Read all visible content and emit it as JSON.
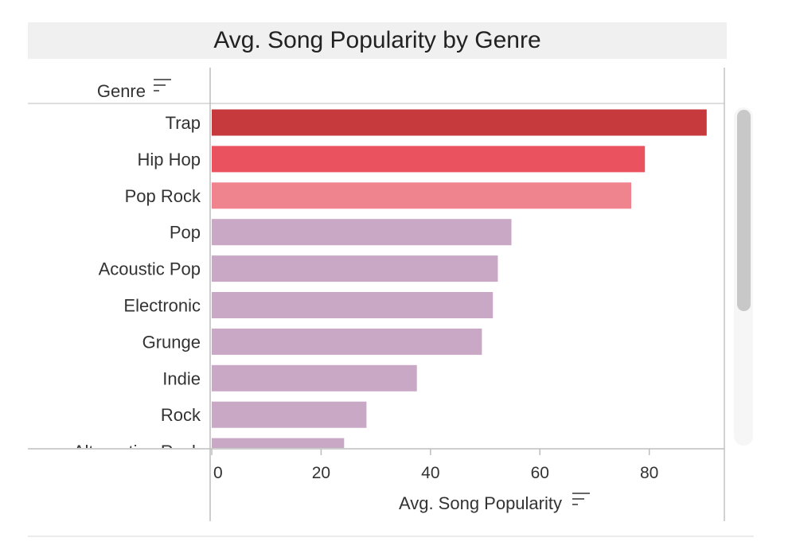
{
  "chart_data": {
    "type": "bar",
    "orientation": "horizontal",
    "title": "Avg. Song Popularity by Genre",
    "category_header": "Genre",
    "xlabel": "Avg. Song Popularity",
    "xlim": [
      0,
      93
    ],
    "x_ticks": [
      0,
      20,
      40,
      60,
      80
    ],
    "categories": [
      "Trap",
      "Hip Hop",
      "Pop Rock",
      "Pop",
      "Acoustic Pop",
      "Electronic",
      "Grunge",
      "Indie",
      "Rock",
      "Alternative Rock"
    ],
    "values": [
      90.5,
      79.2,
      76.7,
      54.8,
      52.3,
      51.4,
      49.4,
      37.5,
      28.3,
      24.2
    ],
    "colors": [
      "#c63a3e",
      "#ea5260",
      "#f0848e",
      "#c9a8c6",
      "#c9a8c6",
      "#c9a8c6",
      "#c9a8c6",
      "#c9a8c6",
      "#c9a8c6",
      "#c9a8c6"
    ],
    "grid": false,
    "legend": "none"
  },
  "icons": {
    "genre_sort": "sort-descending-icon",
    "axis_sort": "sort-descending-icon"
  }
}
